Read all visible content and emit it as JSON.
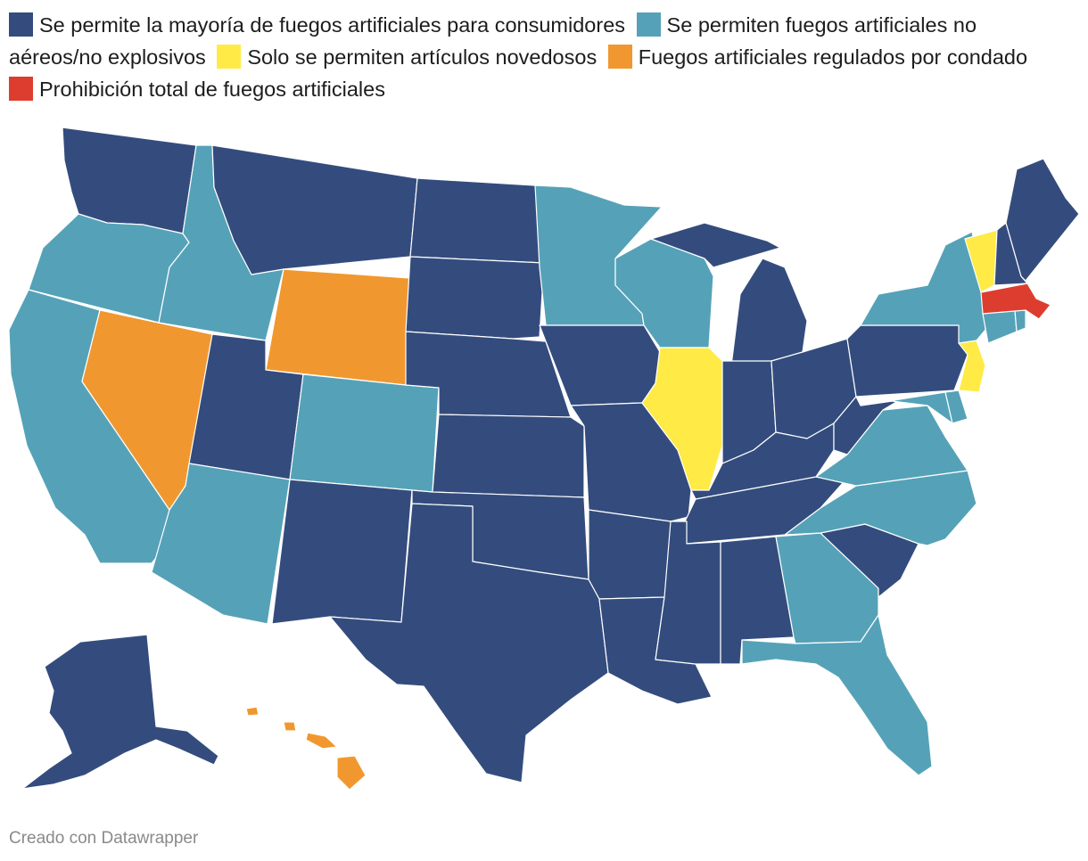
{
  "legend": {
    "items": [
      {
        "label": "Se permite la mayoría de fuegos artificiales para consumidores",
        "color": "#344c7d"
      },
      {
        "label": "Se permiten fuegos artificiales no aéreos/no explosivos",
        "color": "#55a2b8"
      },
      {
        "label": "Solo se permiten artículos novedosos",
        "color": "#ffea46"
      },
      {
        "label": "Fuegos artificiales regulados por condado",
        "color": "#f0982f"
      },
      {
        "label": "Prohibición total de fuegos artificiales",
        "color": "#dd3d2f"
      }
    ]
  },
  "categories": {
    "most": "#344c7d",
    "nonaerial": "#55a2b8",
    "novelty": "#ffea46",
    "county": "#f0982f",
    "ban": "#dd3d2f"
  },
  "states": {
    "WA": "most",
    "OR": "nonaerial",
    "CA": "nonaerial",
    "NV": "county",
    "ID": "nonaerial",
    "MT": "most",
    "WY": "county",
    "UT": "most",
    "AZ": "nonaerial",
    "CO": "nonaerial",
    "NM": "most",
    "ND": "most",
    "SD": "most",
    "NE": "most",
    "KS": "most",
    "OK": "most",
    "TX": "most",
    "MN": "nonaerial",
    "IA": "most",
    "MO": "most",
    "AR": "most",
    "LA": "most",
    "WI": "nonaerial",
    "IL": "novelty",
    "MI": "most",
    "IN": "most",
    "OH": "most",
    "KY": "most",
    "TN": "most",
    "MS": "most",
    "AL": "most",
    "GA": "nonaerial",
    "FL": "nonaerial",
    "SC": "most",
    "NC": "nonaerial",
    "VA": "nonaerial",
    "WV": "most",
    "PA": "most",
    "NY": "nonaerial",
    "VT": "novelty",
    "NH": "most",
    "ME": "most",
    "MA": "ban",
    "CT": "nonaerial",
    "RI": "nonaerial",
    "NJ": "novelty",
    "DE": "nonaerial",
    "MD": "nonaerial",
    "AK": "most",
    "HI": "county"
  },
  "footer": "Creado con Datawrapper"
}
